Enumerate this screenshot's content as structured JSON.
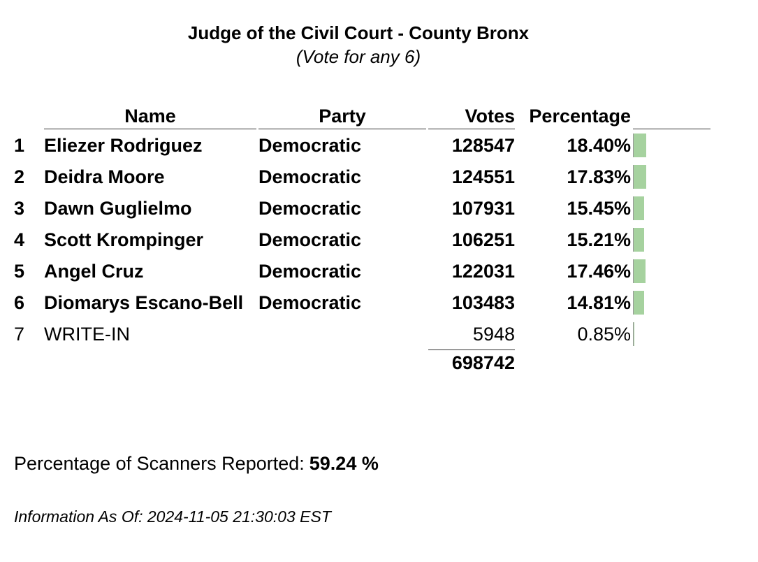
{
  "header": {
    "title": "Judge of the Civil Court - County Bronx",
    "subtitle": "(Vote for any 6)"
  },
  "table": {
    "columns": [
      "Name",
      "Party",
      "Votes",
      "Percentage"
    ],
    "rows": [
      {
        "rank": 1,
        "name": "Eliezer Rodriguez",
        "party": "Democratic",
        "votes": 128547,
        "percentage": {
          "value": 18.4,
          "label": "18.40%"
        }
      },
      {
        "rank": 2,
        "name": "Deidra Moore",
        "party": "Democratic",
        "votes": 124551,
        "percentage": {
          "value": 17.83,
          "label": "17.83%"
        }
      },
      {
        "rank": 3,
        "name": "Dawn Guglielmo",
        "party": "Democratic",
        "votes": 107931,
        "percentage": {
          "value": 15.45,
          "label": "15.45%"
        }
      },
      {
        "rank": 4,
        "name": "Scott Krompinger",
        "party": "Democratic",
        "votes": 106251,
        "percentage": {
          "value": 15.21,
          "label": "15.21%"
        }
      },
      {
        "rank": 5,
        "name": "Angel Cruz",
        "party": "Democratic",
        "votes": 122031,
        "percentage": {
          "value": 17.46,
          "label": "17.46%"
        }
      },
      {
        "rank": 6,
        "name": "Diomarys Escano-Bell",
        "party": "Democratic",
        "votes": 103483,
        "percentage": {
          "value": 14.81,
          "label": "14.81%"
        }
      },
      {
        "rank": 7,
        "name": "WRITE-IN",
        "votes": 5948,
        "percentage": {
          "value": 0.85,
          "label": "0.85%"
        }
      }
    ],
    "total": 698742
  },
  "scanners": {
    "label": "Percentage of Scanners Reported:",
    "value": "59.24 %"
  },
  "info": "Information As Of: 2024-11-05 21:30:03 EST"
}
